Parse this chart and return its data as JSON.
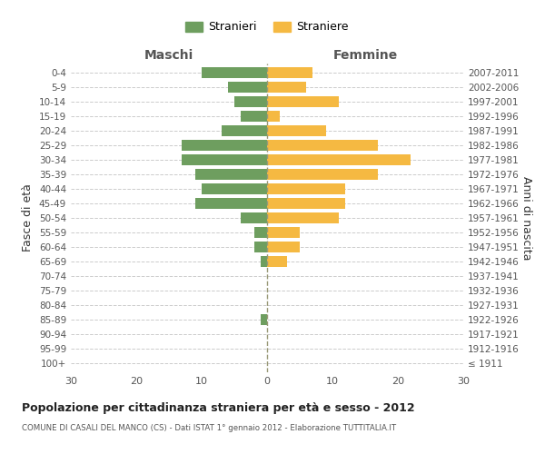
{
  "age_groups": [
    "100+",
    "95-99",
    "90-94",
    "85-89",
    "80-84",
    "75-79",
    "70-74",
    "65-69",
    "60-64",
    "55-59",
    "50-54",
    "45-49",
    "40-44",
    "35-39",
    "30-34",
    "25-29",
    "20-24",
    "15-19",
    "10-14",
    "5-9",
    "0-4"
  ],
  "birth_years": [
    "≤ 1911",
    "1912-1916",
    "1917-1921",
    "1922-1926",
    "1927-1931",
    "1932-1936",
    "1937-1941",
    "1942-1946",
    "1947-1951",
    "1952-1956",
    "1957-1961",
    "1962-1966",
    "1967-1971",
    "1972-1976",
    "1977-1981",
    "1982-1986",
    "1987-1991",
    "1992-1996",
    "1997-2001",
    "2002-2006",
    "2007-2011"
  ],
  "males": [
    0,
    0,
    0,
    1,
    0,
    0,
    0,
    1,
    2,
    2,
    4,
    11,
    10,
    11,
    13,
    13,
    7,
    4,
    5,
    6,
    10
  ],
  "females": [
    0,
    0,
    0,
    0,
    0,
    0,
    0,
    3,
    5,
    5,
    11,
    12,
    12,
    17,
    22,
    17,
    9,
    2,
    11,
    6,
    7
  ],
  "male_color": "#6e9e5f",
  "female_color": "#f5b942",
  "ylabel_left": "Fasce di età",
  "ylabel_right": "Anni di nascita",
  "title": "Popolazione per cittadinanza straniera per età e sesso - 2012",
  "subtitle": "COMUNE DI CASALI DEL MANCO (CS) - Dati ISTAT 1° gennaio 2012 - Elaborazione TUTTITALIA.IT",
  "legend_male": "Stranieri",
  "legend_female": "Straniere",
  "xlim": 30,
  "header_male": "Maschi",
  "header_female": "Femmine",
  "background_color": "#ffffff",
  "grid_color": "#cccccc"
}
